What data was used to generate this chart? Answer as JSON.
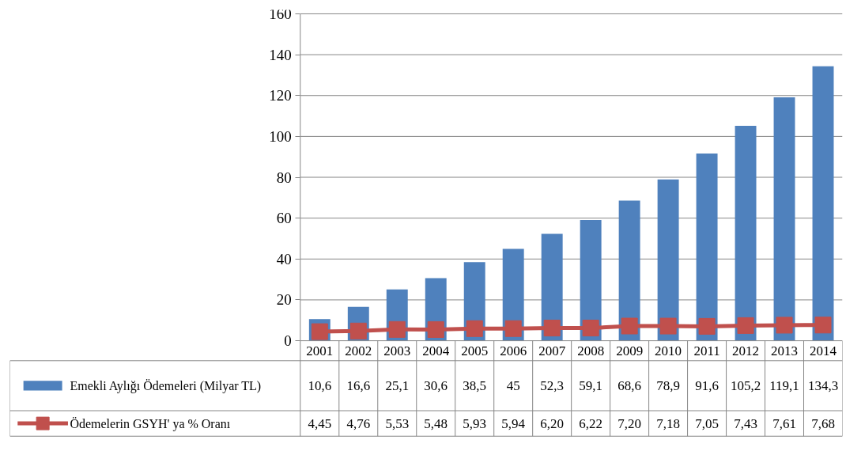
{
  "chart_data": {
    "type": "bar",
    "categories": [
      "2001",
      "2002",
      "2003",
      "2004",
      "2005",
      "2006",
      "2007",
      "2008",
      "2009",
      "2010",
      "2011",
      "2012",
      "2013",
      "2014"
    ],
    "series": [
      {
        "name": "Emekli Aylığı Ödemeleri (Milyar TL)",
        "color": "#4f81bd",
        "values": [
          10.6,
          16.6,
          25.1,
          30.6,
          38.5,
          45,
          52.3,
          59.1,
          68.6,
          78.9,
          91.6,
          105.2,
          119.1,
          134.3
        ],
        "value_labels": [
          "10,6",
          "16,6",
          "25,1",
          "30,6",
          "38,5",
          "45",
          "52,3",
          "59,1",
          "68,6",
          "78,9",
          "91,6",
          "105,2",
          "119,1",
          "134,3"
        ]
      },
      {
        "name": "Ödemelerin GSYH' ya % Oranı",
        "type": "line",
        "color": "#c0504d",
        "marker": "square",
        "values": [
          4.45,
          4.76,
          5.53,
          5.48,
          5.93,
          5.94,
          6.2,
          6.22,
          7.2,
          7.18,
          7.05,
          7.43,
          7.61,
          7.68
        ],
        "value_labels": [
          "4,45",
          "4,76",
          "5,53",
          "5,48",
          "5,93",
          "5,94",
          "6,20",
          "6,22",
          "7,20",
          "7,18",
          "7,05",
          "7,43",
          "7,61",
          "7,68"
        ]
      }
    ],
    "ylim": [
      0,
      160
    ],
    "yticks": [
      0,
      20,
      40,
      60,
      80,
      100,
      120,
      140,
      160
    ],
    "grid": "y",
    "legend": "bottom left"
  }
}
